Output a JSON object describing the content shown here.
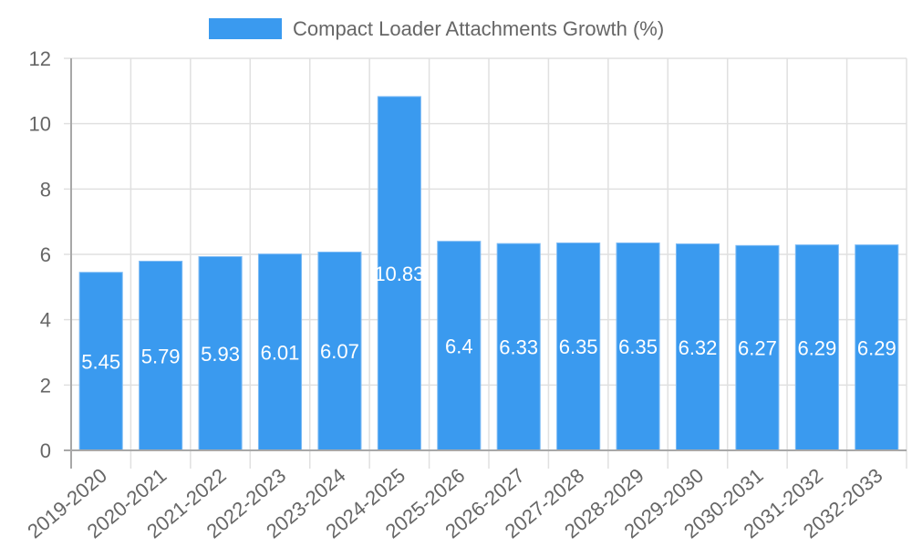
{
  "legend": {
    "label": "Compact Loader Attachments Growth (%)",
    "swatch_color": "#3a9aef"
  },
  "colors": {
    "bar_fill": "#3a9aef",
    "bar_border": "#7fbcf5",
    "grid": "#e0e0e0",
    "axis": "#a8a8a8",
    "text": "#666666",
    "bar_label": "#ffffff"
  },
  "chart_data": {
    "type": "bar",
    "title": "",
    "legend": [
      "Compact Loader Attachments Growth (%)"
    ],
    "legend_position": "top",
    "xlabel": "",
    "ylabel": "",
    "ylim": [
      0,
      12
    ],
    "yticks": [
      0,
      2,
      4,
      6,
      8,
      10,
      12
    ],
    "grid": true,
    "categories": [
      "2019-2020",
      "2020-2021",
      "2021-2022",
      "2022-2023",
      "2023-2024",
      "2024-2025",
      "2025-2026",
      "2026-2027",
      "2027-2028",
      "2028-2029",
      "2029-2030",
      "2030-2031",
      "2031-2032",
      "2032-2033"
    ],
    "series": [
      {
        "name": "Compact Loader Attachments Growth (%)",
        "values": [
          5.45,
          5.79,
          5.93,
          6.01,
          6.07,
          10.83,
          6.4,
          6.33,
          6.35,
          6.35,
          6.32,
          6.27,
          6.29,
          6.29
        ]
      }
    ],
    "data_labels": [
      "5.45",
      "5.79",
      "5.93",
      "6.01",
      "6.07",
      "10.83",
      "6.4",
      "6.33",
      "6.35",
      "6.35",
      "6.32",
      "6.27",
      "6.29",
      "6.29"
    ]
  }
}
